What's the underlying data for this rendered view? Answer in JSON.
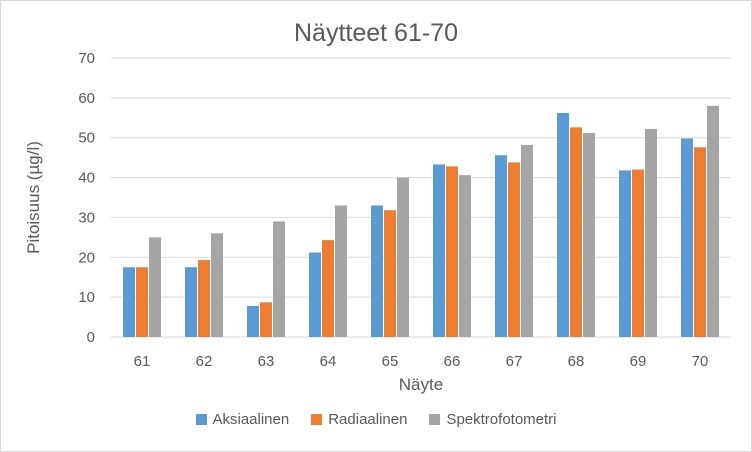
{
  "chart_data": {
    "type": "bar",
    "title": "Näytteet 61-70",
    "xlabel": "Näyte",
    "ylabel": "Pitoisuus (µg/l)",
    "ylim": [
      0,
      70
    ],
    "yticks": [
      "0",
      "10",
      "20",
      "30",
      "40",
      "50",
      "60",
      "70"
    ],
    "grid": true,
    "legend_position": "bottom",
    "categories": [
      "61",
      "62",
      "63",
      "64",
      "65",
      "66",
      "67",
      "68",
      "69",
      "70"
    ],
    "series": [
      {
        "name": "Aksiaalinen",
        "color": "#5b9bd5",
        "values": [
          17.5,
          17.5,
          7.8,
          21.2,
          33.0,
          43.3,
          45.6,
          56.2,
          41.8,
          49.8
        ]
      },
      {
        "name": "Radiaalinen",
        "color": "#ed7d31",
        "values": [
          17.5,
          19.3,
          8.7,
          24.3,
          31.8,
          42.8,
          43.8,
          52.6,
          42.0,
          47.6
        ]
      },
      {
        "name": "Spektrofotometri",
        "color": "#a5a5a5",
        "values": [
          25.0,
          26.0,
          29.0,
          33.0,
          40.0,
          40.6,
          48.2,
          51.2,
          52.2,
          58.0
        ]
      }
    ]
  }
}
